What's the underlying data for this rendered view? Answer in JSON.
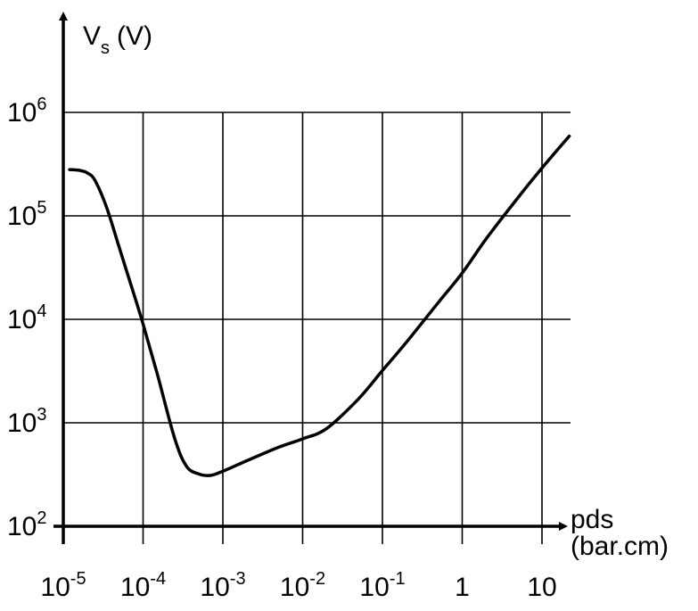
{
  "chart_data": {
    "type": "line",
    "title": "",
    "ylabel": {
      "main": "V",
      "sub": "s",
      "unit": "(V)"
    },
    "xlabel": {
      "line1": "pds",
      "line2": "(bar.cm)"
    },
    "x_scale": "log",
    "y_scale": "log",
    "xlim": [
      1e-05,
      10
    ],
    "ylim": [
      100,
      1000000
    ],
    "grid": true,
    "x_ticks": [
      {
        "value": 1e-05,
        "base": "10",
        "exp": "-5"
      },
      {
        "value": 0.0001,
        "base": "10",
        "exp": "-4"
      },
      {
        "value": 0.001,
        "base": "10",
        "exp": "-3"
      },
      {
        "value": 0.01,
        "base": "10",
        "exp": "-2"
      },
      {
        "value": 0.1,
        "base": "10",
        "exp": "-1"
      },
      {
        "value": 1,
        "base": "1",
        "exp": ""
      },
      {
        "value": 10,
        "base": "10",
        "exp": ""
      }
    ],
    "y_ticks": [
      {
        "value": 100,
        "base": "10",
        "exp": "2"
      },
      {
        "value": 1000,
        "base": "10",
        "exp": "3"
      },
      {
        "value": 10000,
        "base": "10",
        "exp": "4"
      },
      {
        "value": 100000,
        "base": "10",
        "exp": "5"
      },
      {
        "value": 1000000,
        "base": "10",
        "exp": "6"
      }
    ],
    "series": [
      {
        "color": "#000000",
        "x": [
          1.2e-05,
          1.6e-05,
          2e-05,
          2.5e-05,
          3.5e-05,
          5e-05,
          7e-05,
          0.0001,
          0.00015,
          0.00025,
          0.00035,
          0.0005,
          0.0007,
          0.001,
          0.002,
          0.005,
          0.01,
          0.02,
          0.05,
          0.1,
          0.2,
          0.5,
          1,
          2,
          5,
          10,
          22
        ],
        "y": [
          280000,
          275000,
          260000,
          220000,
          120000,
          50000,
          22000,
          9000,
          3000,
          700,
          380,
          320,
          310,
          340,
          430,
          580,
          700,
          880,
          1700,
          3200,
          6000,
          14500,
          28000,
          60000,
          150000,
          290000,
          590000
        ]
      }
    ]
  }
}
